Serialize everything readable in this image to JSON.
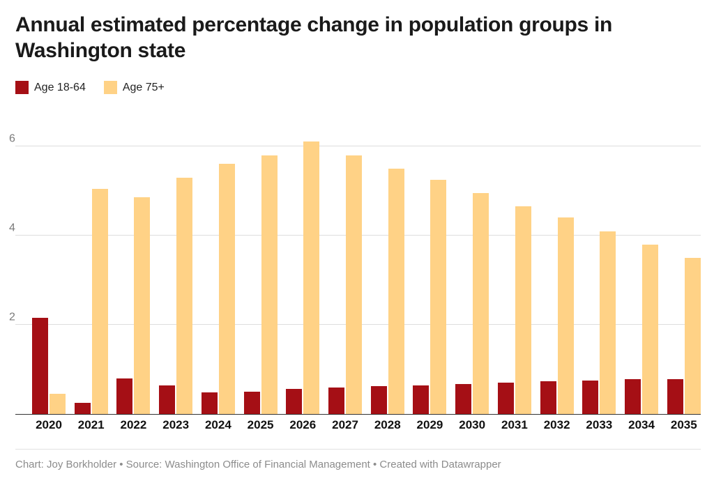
{
  "header": {
    "title": "Annual estimated percentage change in population groups in Washington state"
  },
  "chart_data": {
    "type": "bar",
    "title": "Annual estimated percentage change in population groups in Washington state",
    "categories": [
      "2020",
      "2021",
      "2022",
      "2023",
      "2024",
      "2025",
      "2026",
      "2027",
      "2028",
      "2029",
      "2030",
      "2031",
      "2032",
      "2033",
      "2034",
      "2035"
    ],
    "series": [
      {
        "name": "Age 18-64",
        "color": "#a50f15",
        "values": [
          2.15,
          0.25,
          0.8,
          0.65,
          0.48,
          0.5,
          0.57,
          0.6,
          0.62,
          0.65,
          0.68,
          0.7,
          0.73,
          0.75,
          0.78,
          0.78
        ]
      },
      {
        "name": "Age 75+",
        "color": "#ffd286",
        "values": [
          0.45,
          5.05,
          4.85,
          5.3,
          5.6,
          5.8,
          6.1,
          5.8,
          5.5,
          5.25,
          4.95,
          4.65,
          4.4,
          4.1,
          3.8,
          3.5
        ]
      }
    ],
    "xlabel": "",
    "ylabel": "",
    "ylim": [
      0,
      6.4
    ],
    "yticks": [
      2,
      4,
      6
    ],
    "grid": true,
    "legend_position": "top-left"
  },
  "footer": {
    "text": "Chart: Joy Borkholder • Source: Washington Office of Financial Management • Created with Datawrapper"
  },
  "colors": {
    "grid_line": "#dddddd",
    "baseline": "#333333",
    "tick_label": "#7a7a7a",
    "axis_label": "#111111",
    "footer_text": "#8c8c8c",
    "background": "#ffffff"
  }
}
